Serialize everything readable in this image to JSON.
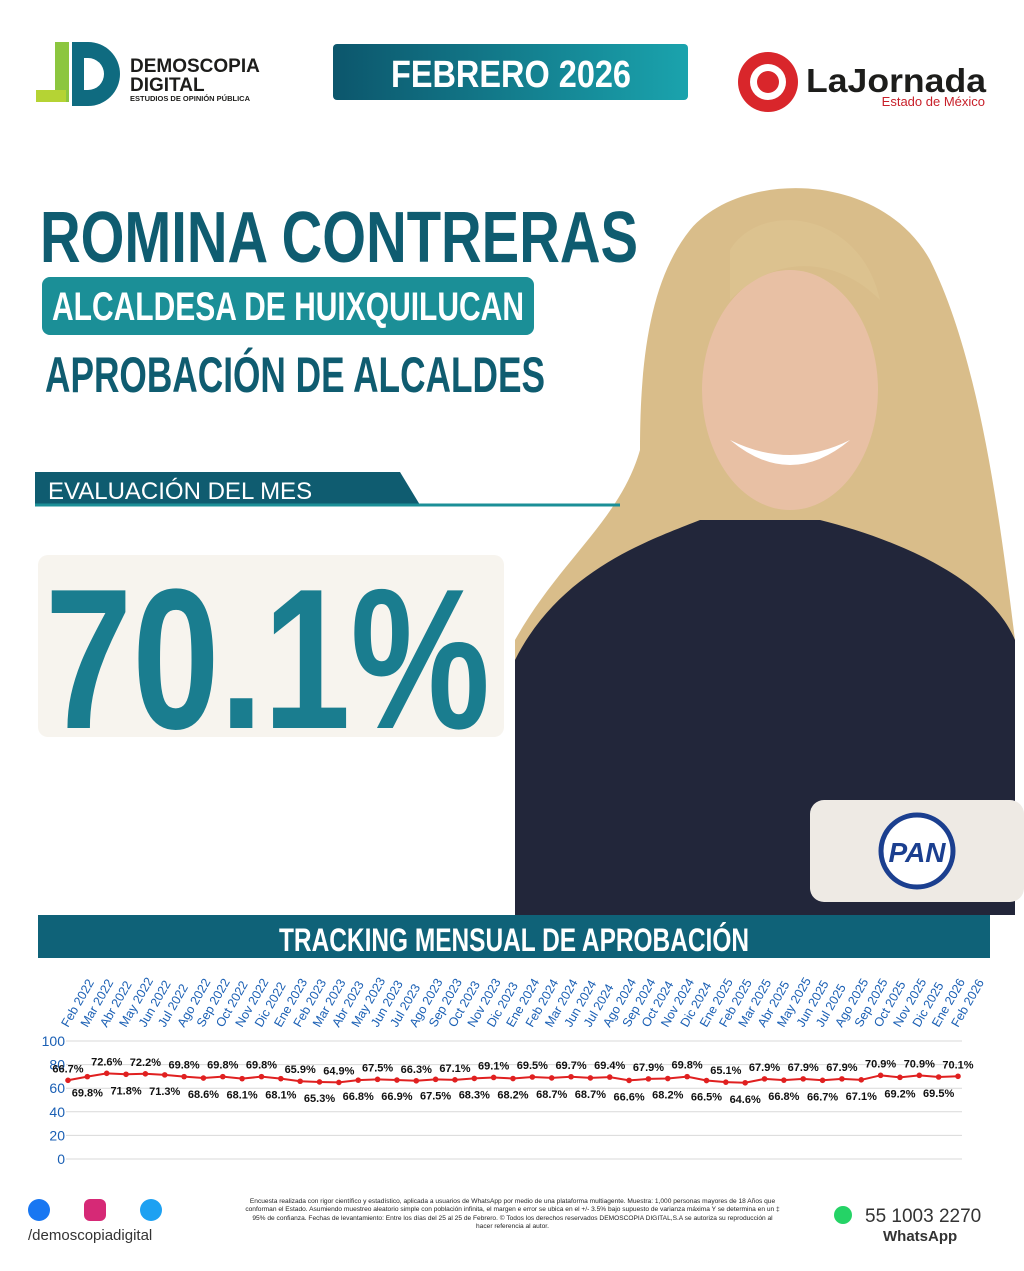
{
  "header": {
    "brand": "DEMOSCOPIA",
    "brand_line2": "DIGITAL",
    "brand_tagline": "ESTUDIOS DE OPINIÓN PÚBLICA",
    "period": "FEBRERO 2026",
    "partner": "LaJornada",
    "partner_region": "Estado de México"
  },
  "profile": {
    "name": "ROMINA CONTRERAS",
    "role": "ALCALDESA DE HUIXQUILUCAN",
    "ranking": "APROBACIÓN DE ALCALDES",
    "evaluation_label": "EVALUACIÓN DEL MES",
    "evaluation": "70.1%",
    "party": "PAN"
  },
  "chart_data": {
    "type": "line",
    "title": "TRACKING MENSUAL DE APROBACIÓN",
    "categories": [
      "Feb 2022",
      "Mar 2022",
      "Abr 2022",
      "May 2022",
      "Jun 2022",
      "Jul 2022",
      "Ago 2022",
      "Sep 2022",
      "Oct 2022",
      "Nov 2022",
      "Dic 2022",
      "Ene 2023",
      "Feb 2023",
      "Mar 2023",
      "Abr 2023",
      "May 2023",
      "Jun 2023",
      "Jul 2023",
      "Ago 2023",
      "Sep 2023",
      "Oct 2023",
      "Nov 2023",
      "Dic 2023",
      "Ene 2024",
      "Feb 2024",
      "Mar 2024",
      "Jun 2024",
      "Jul 2024",
      "Ago 2024",
      "Sep 2024",
      "Oct 2024",
      "Nov 2024",
      "Dic 2024",
      "Ene 2025",
      "Feb 2025",
      "Mar 2025",
      "Abr 2025",
      "May 2025",
      "Jun 2025",
      "Jul 2025",
      "Ago 2025",
      "Sep 2025",
      "Oct 2025",
      "Nov 2025",
      "Dic 2025",
      "Ene 2026",
      "Feb 2026"
    ],
    "values": [
      66.7,
      69.8,
      72.6,
      71.8,
      72.2,
      71.3,
      69.8,
      68.6,
      69.8,
      68.1,
      69.8,
      68.1,
      65.9,
      65.3,
      64.9,
      66.8,
      67.5,
      66.9,
      66.3,
      67.5,
      67.1,
      68.3,
      69.1,
      68.2,
      69.5,
      68.7,
      69.7,
      68.7,
      69.4,
      66.6,
      67.9,
      68.2,
      69.8,
      66.5,
      65.1,
      64.6,
      67.9,
      66.8,
      67.9,
      66.7,
      67.9,
      67.1,
      70.9,
      69.2,
      70.9,
      69.5,
      70.1
    ],
    "value_labels": [
      "66.7%",
      "69.8%",
      "72.6%",
      "71.8%",
      "72.2%",
      "71.3%",
      "69.8%",
      "68.6%",
      "69.8%",
      "68.1%",
      "69.8%",
      "68.1%",
      "65.9%",
      "65.3%",
      "64.9%",
      "66.8%",
      "67.5%",
      "66.9%",
      "66.3%",
      "67.5%",
      "67.1%",
      "68.3%",
      "69.1%",
      "68.2%",
      "69.5%",
      "68.7%",
      "69.7%",
      "68.7%",
      "69.4%",
      "66.6%",
      "67.9%",
      "68.2%",
      "69.8%",
      "66.5%",
      "65.1%",
      "64.6%",
      "67.9%",
      "66.8%",
      "67.9%",
      "66.7%",
      "67.9%",
      "67.1%",
      "70.9%",
      "69.2%",
      "70.9%",
      "69.5%",
      "70.1%"
    ],
    "color": "#e02020",
    "ylim": [
      0,
      100
    ],
    "yticks": [
      0,
      20,
      40,
      60,
      80,
      100
    ],
    "grid": true
  },
  "footer": {
    "social": "/demoscopiadigital",
    "note": "Encuesta realizada con rigor científico y estadístico, aplicada a usuarios de WhatsApp por medio de una plataforma multiagente. Muestra: 1,000 personas mayores de 18 Años que conforman el Estado. Asumiendo muestreo aleatorio simple con población infinita, el margen e error se ubica en el +/- 3.5% bajo supuesto de varianza máxima Y se determina en un ‡ 95% de confianza. Fechas de levantamiento: Entre los días del 25 al 25 de Febrero. © Todos los derechos reservados DEMOSCOPIA DIGITAL,S.A se autoriza su reproducción al hacer referencia al autor.",
    "phone": "55 1003 2270",
    "phone_label": "WhatsApp"
  }
}
